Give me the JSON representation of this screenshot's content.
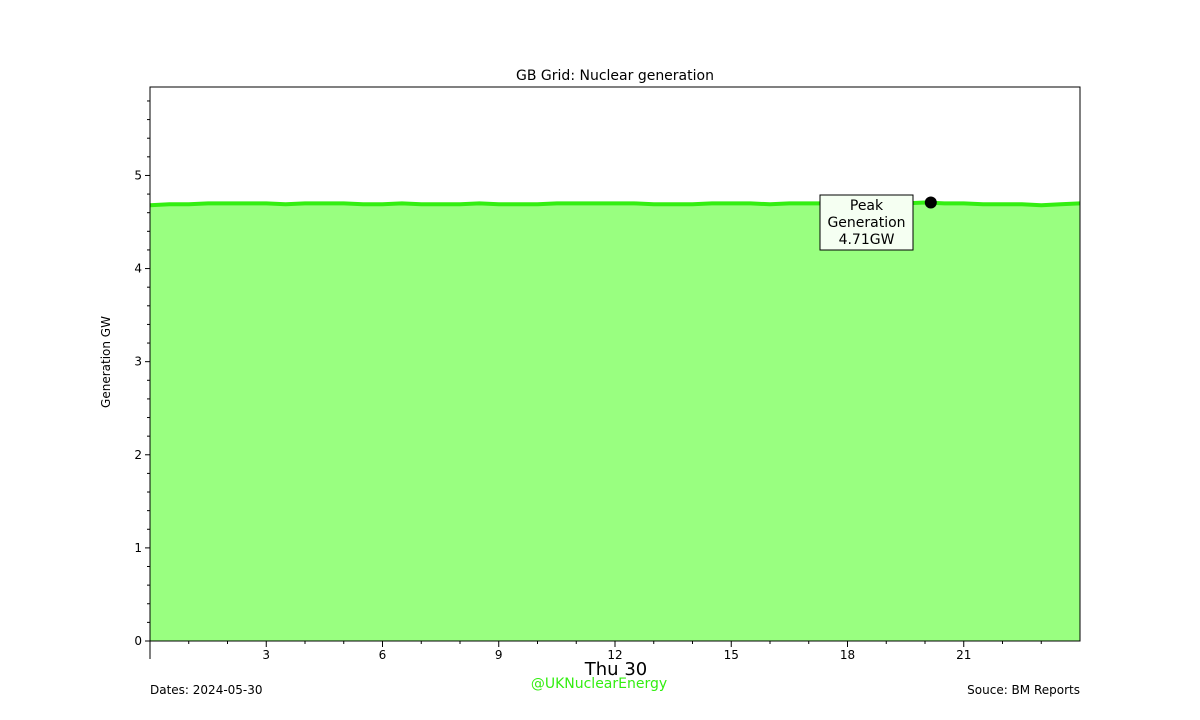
{
  "chart_data": {
    "type": "area",
    "title": "GB Grid: Nuclear generation",
    "ylabel": "Generation GW",
    "xlabel": "Thu 30",
    "xlim": [
      0,
      24
    ],
    "ylim": [
      0,
      5.95
    ],
    "x_ticks": [
      3,
      6,
      9,
      12,
      15,
      18,
      21
    ],
    "x_tick_labels": [
      "3",
      "6",
      "9",
      "12",
      "15",
      "18",
      "21"
    ],
    "y_ticks": [
      0,
      1,
      2,
      3,
      4,
      5
    ],
    "y_tick_labels": [
      "0",
      "1",
      "2",
      "3",
      "4",
      "5"
    ],
    "grid": false,
    "fill_color": "#99ff80",
    "line_color": "#33ee11",
    "x": [
      0,
      0.5,
      1,
      1.5,
      2,
      2.5,
      3,
      3.5,
      4,
      4.5,
      5,
      5.5,
      6,
      6.5,
      7,
      7.5,
      8,
      8.5,
      9,
      9.5,
      10,
      10.5,
      11,
      11.5,
      12,
      12.5,
      13,
      13.5,
      14,
      14.5,
      15,
      15.5,
      16,
      16.5,
      17,
      17.5,
      18,
      18.5,
      19,
      19.5,
      20,
      20.5,
      21,
      21.5,
      22,
      22.5,
      23,
      23.5,
      24
    ],
    "values": [
      4.68,
      4.69,
      4.69,
      4.7,
      4.7,
      4.7,
      4.7,
      4.69,
      4.7,
      4.7,
      4.7,
      4.69,
      4.69,
      4.7,
      4.69,
      4.69,
      4.69,
      4.7,
      4.69,
      4.69,
      4.69,
      4.7,
      4.7,
      4.7,
      4.7,
      4.7,
      4.69,
      4.69,
      4.69,
      4.7,
      4.7,
      4.7,
      4.69,
      4.7,
      4.7,
      4.7,
      4.7,
      4.7,
      4.7,
      4.7,
      4.71,
      4.7,
      4.7,
      4.69,
      4.69,
      4.69,
      4.68,
      4.69,
      4.7
    ],
    "peak": {
      "x": 20.15,
      "y": 4.71,
      "label_lines": [
        "Peak",
        "Generation",
        "4.71GW"
      ]
    }
  },
  "footer": {
    "dates": "Dates: 2024-05-30",
    "handle": "@UKNuclearEnergy",
    "handle_color": "#33ee11",
    "source": "Souce: BM Reports"
  }
}
